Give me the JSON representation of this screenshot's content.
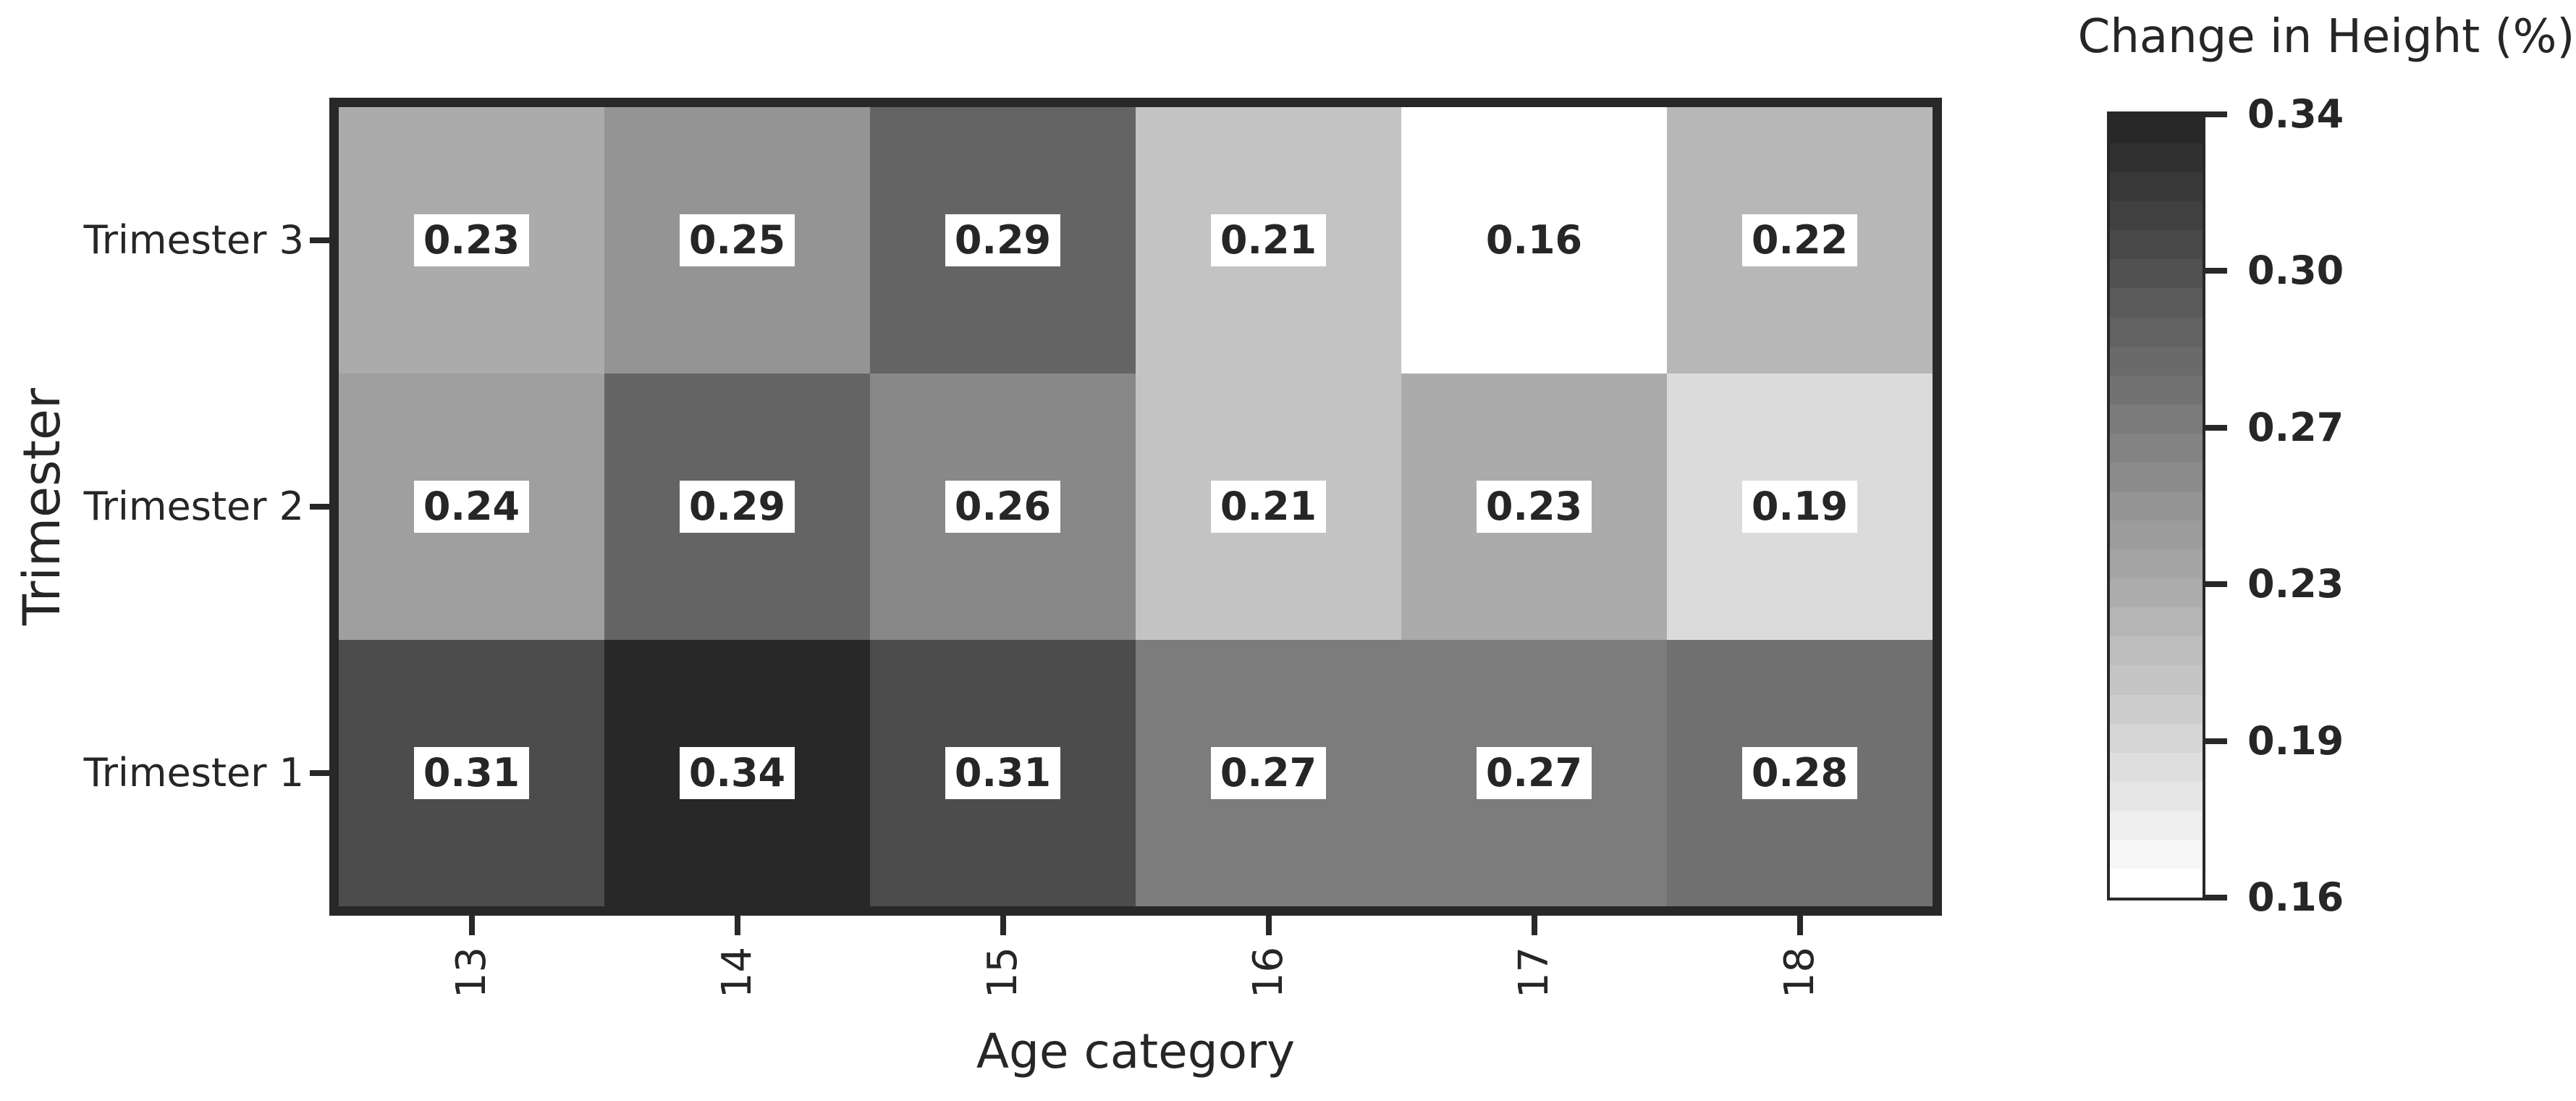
{
  "chart_data": {
    "type": "heatmap",
    "xlabel": "Age category",
    "ylabel": "Trimester",
    "colorbar_title": "Change in Height (%)",
    "x_categories": [
      "13",
      "14",
      "15",
      "16",
      "17",
      "18"
    ],
    "y_categories_top_to_bottom": [
      "Trimester 3",
      "Trimester 2",
      "Trimester 1"
    ],
    "series": [
      {
        "name": "Trimester 3",
        "values": [
          0.23,
          0.25,
          0.29,
          0.21,
          0.16,
          0.22
        ]
      },
      {
        "name": "Trimester 2",
        "values": [
          0.24,
          0.29,
          0.26,
          0.21,
          0.23,
          0.19
        ]
      },
      {
        "name": "Trimester 1",
        "values": [
          0.31,
          0.34,
          0.31,
          0.27,
          0.27,
          0.28
        ]
      }
    ],
    "value_format_decimals": 2,
    "vmin": 0.16,
    "vmax": 0.34,
    "colorbar_tick_labels": [
      "0.34",
      "0.30",
      "0.27",
      "0.23",
      "0.19",
      "0.16"
    ],
    "colormap": {
      "name": "greys-discrete",
      "levels": 27,
      "min_color": "#ffffff",
      "max_color": "#282828"
    },
    "cell_annotation_style": {
      "text_color": "#262626",
      "box_color": "#ffffff",
      "bold": true
    },
    "axis_color": "#282828",
    "text_color": "#262626",
    "x_tick_label_rotation_deg": 90,
    "grid": false,
    "legend_position": "colorbar-right"
  }
}
